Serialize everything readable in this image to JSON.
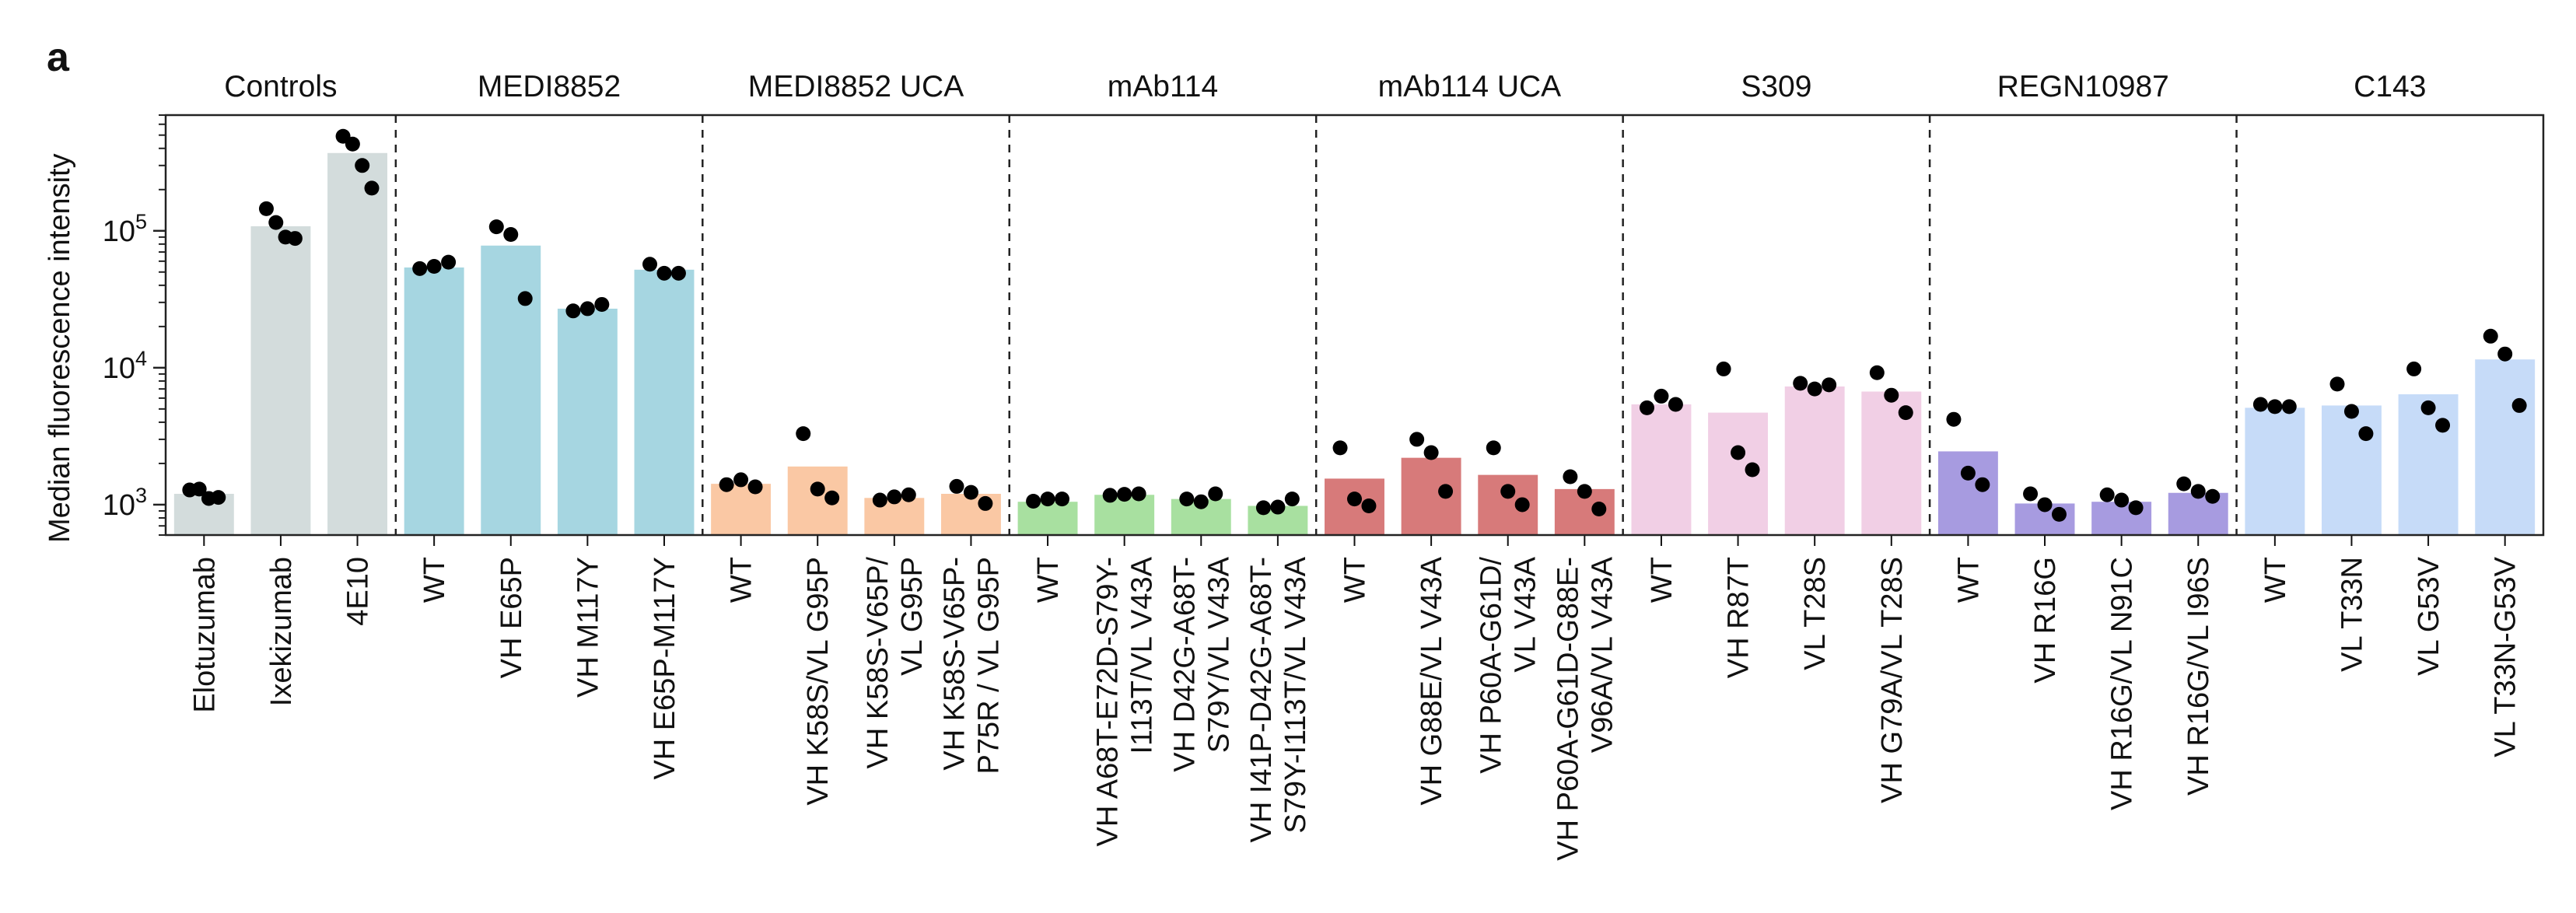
{
  "panel_label": "a",
  "chart_data": {
    "type": "bar",
    "ylabel": "Median fluorescence intensity",
    "yscale": "log",
    "ylim": [
      600,
      700000
    ],
    "y_ticks": [
      {
        "value": 1000,
        "base": "10",
        "exp": "3"
      },
      {
        "value": 10000,
        "base": "10",
        "exp": "4"
      },
      {
        "value": 100000,
        "base": "10",
        "exp": "5"
      }
    ],
    "grid": false,
    "legend": "none",
    "groups": [
      {
        "name": "Controls",
        "color": "#d3dcdc",
        "bars": [
          {
            "label": "Elotuzumab",
            "value": 1200,
            "points": [
              1280,
              1300,
              1110,
              1130
            ]
          },
          {
            "label": "Ixekizumab",
            "value": 108000,
            "points": [
              145000,
              115000,
              90000,
              88000
            ]
          },
          {
            "label": "4E10",
            "value": 370000,
            "points": [
              490000,
              430000,
              300000,
              205000
            ]
          }
        ]
      },
      {
        "name": "MEDI8852",
        "color": "#a6d6e1",
        "bars": [
          {
            "label": "WT",
            "value": 54000,
            "points": [
              53000,
              55000,
              59000
            ]
          },
          {
            "label": "VH E65P",
            "value": 78000,
            "points": [
              107000,
              94000,
              32000
            ]
          },
          {
            "label": "VH M117Y",
            "value": 27000,
            "points": [
              26000,
              27000,
              29000
            ]
          },
          {
            "label": "VH E65P-M117Y",
            "value": 52000,
            "points": [
              57000,
              49000,
              49000
            ]
          }
        ]
      },
      {
        "name": "MEDI8852 UCA",
        "color": "#fac8a4",
        "bars": [
          {
            "label": "WT",
            "value": 1420,
            "points": [
              1400,
              1520,
              1350
            ]
          },
          {
            "label": "VH K58S/VL G95P",
            "value": 1900,
            "points": [
              3300,
              1300,
              1120
            ]
          },
          {
            "label": "VH K58S-V65P/\nVL G95P",
            "value": 1120,
            "points": [
              1080,
              1140,
              1180
            ]
          },
          {
            "label": "VH K58S-V65P-\nP75R / VL G95P",
            "value": 1200,
            "points": [
              1360,
              1230,
              1020
            ]
          }
        ]
      },
      {
        "name": "mAb114",
        "color": "#a8e0a0",
        "bars": [
          {
            "label": "WT",
            "value": 1050,
            "points": [
              1060,
              1100,
              1100
            ]
          },
          {
            "label": "VH A68T-E72D-S79Y-\nI113T/VL V43A",
            "value": 1180,
            "points": [
              1170,
              1190,
              1200
            ]
          },
          {
            "label": "VH D42G-A68T-\nS79Y/VL V43A",
            "value": 1100,
            "points": [
              1100,
              1050,
              1200
            ]
          },
          {
            "label": "VH  I41P-D42G-A68T-\nS79Y-I113T/VL V43A",
            "value": 980,
            "points": [
              950,
              960,
              1100
            ]
          }
        ]
      },
      {
        "name": "mAb114 UCA",
        "color": "#d77a7a",
        "bars": [
          {
            "label": "WT",
            "value": 1550,
            "points": [
              2600,
              1100,
              980
            ]
          },
          {
            "label": "VH G88E/VL V43A",
            "value": 2200,
            "points": [
              3000,
              2400,
              1250
            ]
          },
          {
            "label": "VH  P60A-G61D/\nVL V43A",
            "value": 1650,
            "points": [
              2600,
              1250,
              1000
            ]
          },
          {
            "label": "VH  P60A-G61D-G88E-\nV96A/VL V43A",
            "value": 1300,
            "points": [
              1600,
              1250,
              930
            ]
          }
        ]
      },
      {
        "name": "S309",
        "color": "#f1cfe5",
        "bars": [
          {
            "label": "WT",
            "value": 5400,
            "points": [
              5100,
              6200,
              5400
            ]
          },
          {
            "label": "VH R87T",
            "value": 4700,
            "points": [
              9800,
              2400,
              1800
            ]
          },
          {
            "label": "VL T28S",
            "value": 7300,
            "points": [
              7700,
              7000,
              7500
            ]
          },
          {
            "label": "VH G79A/VL T28S",
            "value": 6700,
            "points": [
              9200,
              6300,
              4700
            ]
          }
        ]
      },
      {
        "name": "REGN10987",
        "color": "#a79be0",
        "bars": [
          {
            "label": "WT",
            "value": 2450,
            "points": [
              4200,
              1700,
              1400
            ]
          },
          {
            "label": "VH R16G",
            "value": 1020,
            "points": [
              1200,
              1000,
              850
            ]
          },
          {
            "label": "VH R16G/VL N91C",
            "value": 1050,
            "points": [
              1180,
              1080,
              950
            ]
          },
          {
            "label": "VH R16G/VL I96S",
            "value": 1220,
            "points": [
              1420,
              1250,
              1150
            ]
          }
        ]
      },
      {
        "name": "C143",
        "color": "#c6dbf8",
        "bars": [
          {
            "label": "WT",
            "value": 5100,
            "points": [
              5400,
              5200,
              5200
            ]
          },
          {
            "label": "VL T33N",
            "value": 5300,
            "points": [
              7600,
              4800,
              3300
            ]
          },
          {
            "label": "VL G53V",
            "value": 6400,
            "points": [
              9800,
              5100,
              3800
            ]
          },
          {
            "label": "VL T33N-G53V",
            "value": 11500,
            "points": [
              17000,
              12600,
              5300
            ]
          }
        ]
      }
    ]
  }
}
